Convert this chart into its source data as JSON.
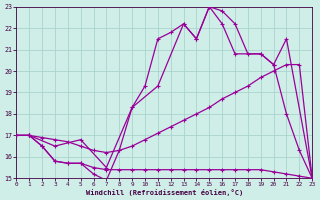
{
  "xlabel": "Windchill (Refroidissement éolien,°C)",
  "bg_color": "#d0eee8",
  "grid_color": "#a8d4cc",
  "line_color": "#990099",
  "text_color": "#440044",
  "xlim": [
    0,
    23
  ],
  "ylim": [
    15,
    23
  ],
  "xticks": [
    0,
    1,
    2,
    3,
    4,
    5,
    6,
    7,
    8,
    9,
    10,
    11,
    12,
    13,
    14,
    15,
    16,
    17,
    18,
    19,
    20,
    21,
    22,
    23
  ],
  "yticks": [
    15,
    16,
    17,
    18,
    19,
    20,
    21,
    22,
    23
  ],
  "curve1_x": [
    0,
    1,
    2,
    3,
    4,
    5,
    6,
    7,
    8,
    9,
    10,
    11,
    12,
    13,
    14,
    15,
    16,
    17,
    18,
    19,
    20,
    21,
    22,
    23
  ],
  "curve1_y": [
    17.0,
    17.0,
    16.5,
    15.8,
    15.7,
    15.7,
    15.2,
    14.9,
    16.3,
    18.3,
    19.3,
    21.5,
    21.8,
    22.2,
    21.5,
    23.0,
    22.8,
    22.2,
    20.8,
    20.8,
    20.3,
    18.0,
    16.3,
    15.0
  ],
  "curve2_x": [
    0,
    1,
    3,
    5,
    7,
    9,
    11,
    13,
    14,
    15,
    16,
    17,
    19,
    20,
    21,
    23
  ],
  "curve2_y": [
    17.0,
    17.0,
    16.5,
    16.8,
    15.5,
    18.3,
    19.3,
    22.2,
    21.5,
    23.0,
    22.2,
    20.8,
    20.8,
    20.3,
    21.5,
    15.0
  ],
  "curve3_x": [
    0,
    1,
    2,
    3,
    4,
    5,
    6,
    7,
    8,
    9,
    10,
    11,
    12,
    13,
    14,
    15,
    16,
    17,
    18,
    19,
    20,
    21,
    22,
    23
  ],
  "curve3_y": [
    17.0,
    17.0,
    16.9,
    16.8,
    16.7,
    16.5,
    16.3,
    16.2,
    16.3,
    16.5,
    16.8,
    17.1,
    17.4,
    17.7,
    18.0,
    18.3,
    18.7,
    19.0,
    19.3,
    19.7,
    20.0,
    20.3,
    20.3,
    15.0
  ],
  "curve4_x": [
    0,
    1,
    2,
    3,
    4,
    5,
    6,
    7,
    8,
    9,
    10,
    11,
    12,
    13,
    14,
    15,
    16,
    17,
    18,
    19,
    20,
    21,
    22,
    23
  ],
  "curve4_y": [
    17.0,
    17.0,
    16.5,
    15.8,
    15.7,
    15.7,
    15.5,
    15.4,
    15.4,
    15.4,
    15.4,
    15.4,
    15.4,
    15.4,
    15.4,
    15.4,
    15.4,
    15.4,
    15.4,
    15.4,
    15.3,
    15.2,
    15.1,
    15.0
  ],
  "markersize": 3.5,
  "linewidth": 0.9
}
